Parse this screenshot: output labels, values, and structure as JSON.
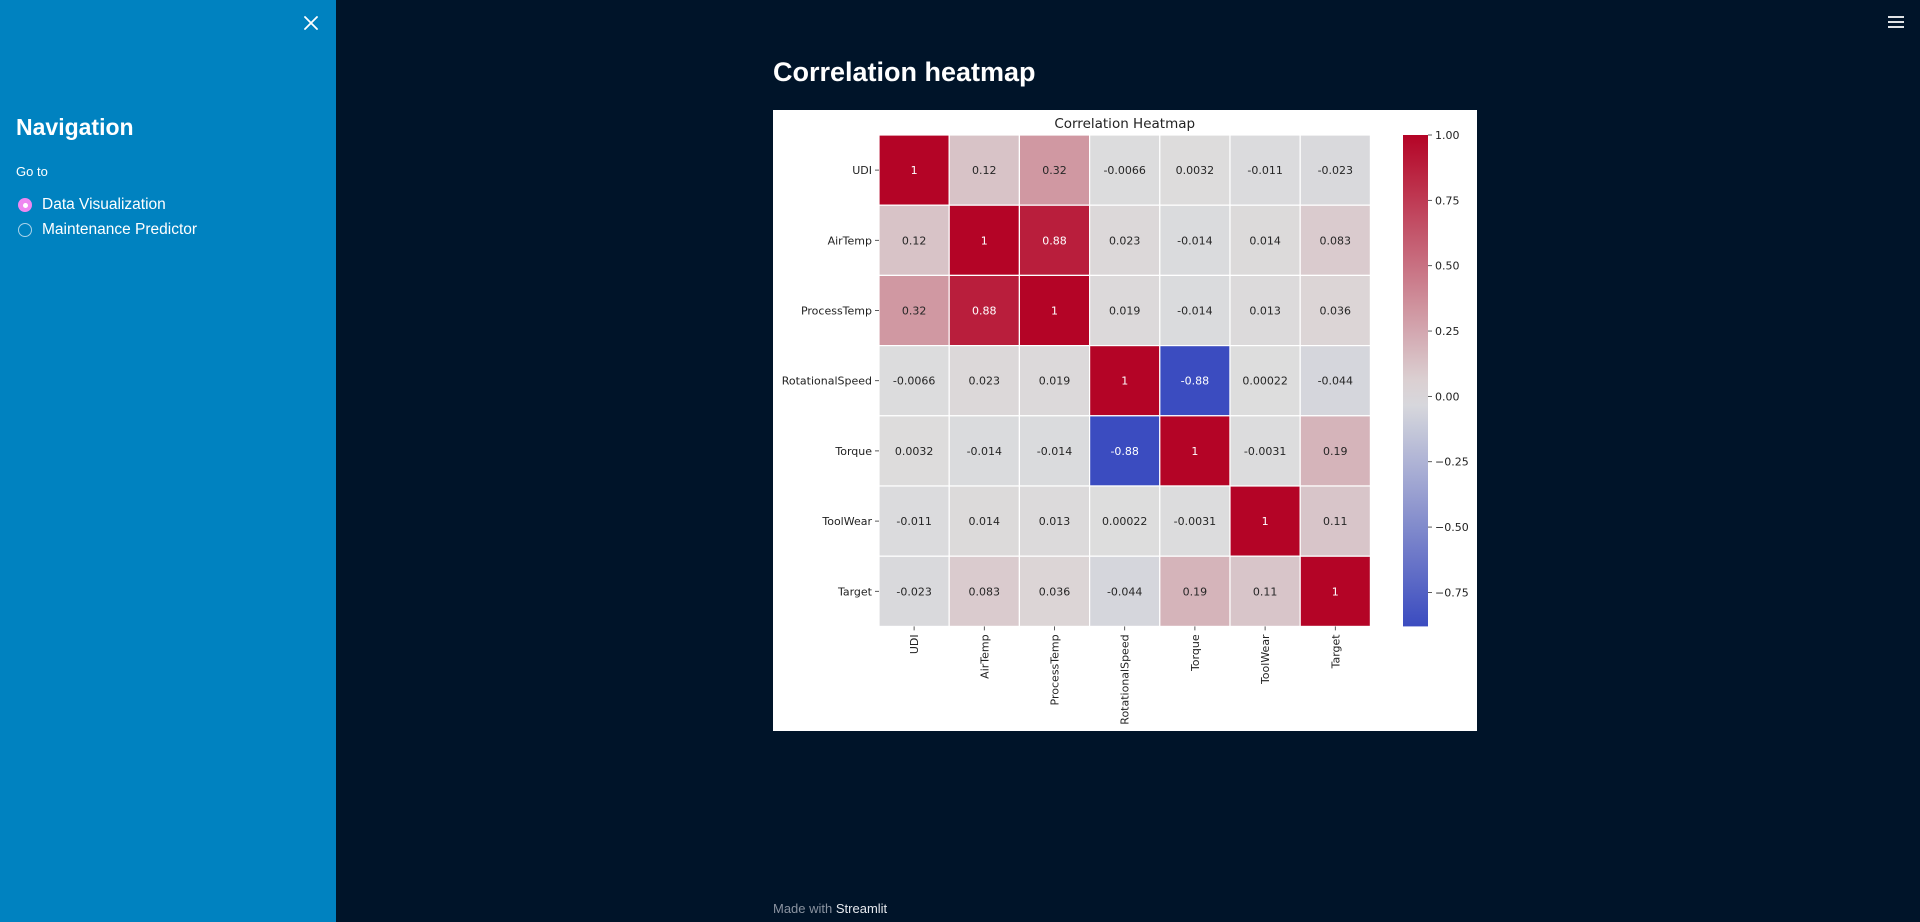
{
  "sidebar": {
    "title": "Navigation",
    "radio_label": "Go to",
    "options": [
      {
        "label": "Data Visualization",
        "selected": true
      },
      {
        "label": "Maintenance Predictor",
        "selected": false
      }
    ]
  },
  "main": {
    "title": "Correlation heatmap"
  },
  "footer": {
    "prefix": "Made with",
    "link": "Streamlit"
  },
  "icons": {
    "close": "close-icon",
    "menu": "hamburger-menu-icon"
  },
  "colors": {
    "sidebar_bg": "#0082c0",
    "main_bg": "#001429",
    "radio_selected": "#ee88f0",
    "cmap_low": "#3b4cc0",
    "cmap_mid": "#dddddd",
    "cmap_high": "#b40426"
  },
  "chart_data": {
    "type": "heatmap",
    "title": "Correlation Heatmap",
    "labels": [
      "UDI",
      "AirTemp",
      "ProcessTemp",
      "RotationalSpeed",
      "Torque",
      "ToolWear",
      "Target"
    ],
    "annotations": [
      [
        "1",
        "0.12",
        "0.32",
        "-0.0066",
        "0.0032",
        "-0.011",
        "-0.023"
      ],
      [
        "0.12",
        "1",
        "0.88",
        "0.023",
        "-0.014",
        "0.014",
        "0.083"
      ],
      [
        "0.32",
        "0.88",
        "1",
        "0.019",
        "-0.014",
        "0.013",
        "0.036"
      ],
      [
        "-0.0066",
        "0.023",
        "0.019",
        "1",
        "-0.88",
        "0.00022",
        "-0.044"
      ],
      [
        "0.0032",
        "-0.014",
        "-0.014",
        "-0.88",
        "1",
        "-0.0031",
        "0.19"
      ],
      [
        "-0.011",
        "0.014",
        "0.013",
        "0.00022",
        "-0.0031",
        "1",
        "0.11"
      ],
      [
        "-0.023",
        "0.083",
        "0.036",
        "-0.044",
        "0.19",
        "0.11",
        "1"
      ]
    ],
    "matrix": [
      [
        1,
        0.12,
        0.32,
        -0.0066,
        0.0032,
        -0.011,
        -0.023
      ],
      [
        0.12,
        1,
        0.88,
        0.023,
        -0.014,
        0.014,
        0.083
      ],
      [
        0.32,
        0.88,
        1,
        0.019,
        -0.014,
        0.013,
        0.036
      ],
      [
        -0.0066,
        0.023,
        0.019,
        1,
        -0.88,
        0.00022,
        -0.044
      ],
      [
        0.0032,
        -0.014,
        -0.014,
        -0.88,
        1,
        -0.0031,
        0.19
      ],
      [
        -0.011,
        0.014,
        0.013,
        0.00022,
        -0.0031,
        1,
        0.11
      ],
      [
        -0.023,
        0.083,
        0.036,
        -0.044,
        0.19,
        0.11,
        1
      ]
    ],
    "colorbar": {
      "min": -0.88,
      "max": 1.0,
      "ticks": [
        1.0,
        0.75,
        0.5,
        0.25,
        0.0,
        -0.25,
        -0.5,
        -0.75
      ],
      "tick_labels": [
        "1.00",
        "0.75",
        "0.50",
        "0.25",
        "0.00",
        "−0.25",
        "−0.50",
        "−0.75"
      ]
    },
    "colormap": "coolwarm"
  }
}
